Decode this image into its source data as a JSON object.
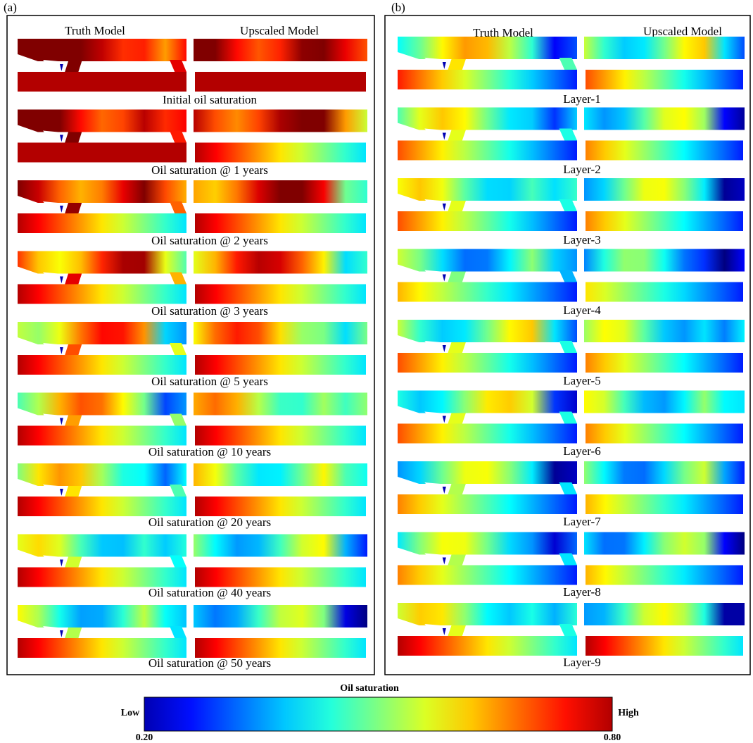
{
  "panels": [
    {
      "label": "(a)",
      "headers": [
        "Truth Model",
        "Upscaled Model"
      ],
      "rows": [
        "Initial oil saturation",
        "Oil saturation @ 1 years",
        "Oil saturation @ 2 years",
        "Oil saturation @ 3 years",
        "Oil saturation @ 5 years",
        "Oil saturation @ 10 years",
        "Oil saturation @ 20 years",
        "Oil saturation @ 40 years",
        "Oil saturation @ 50 years"
      ]
    },
    {
      "label": "(b)",
      "headers": [
        "Truth Model",
        "Upscaled Model"
      ],
      "rows": [
        "Layer-1",
        "Layer-2",
        "Layer-3",
        "Layer-4",
        "Layer-5",
        "Layer-6",
        "Layer-7",
        "Layer-8",
        "Layer-9"
      ]
    }
  ],
  "colorbar": {
    "title": "Oil saturation",
    "low_label": "Low",
    "high_label": "High",
    "min": "0.20",
    "max": "0.80"
  }
}
